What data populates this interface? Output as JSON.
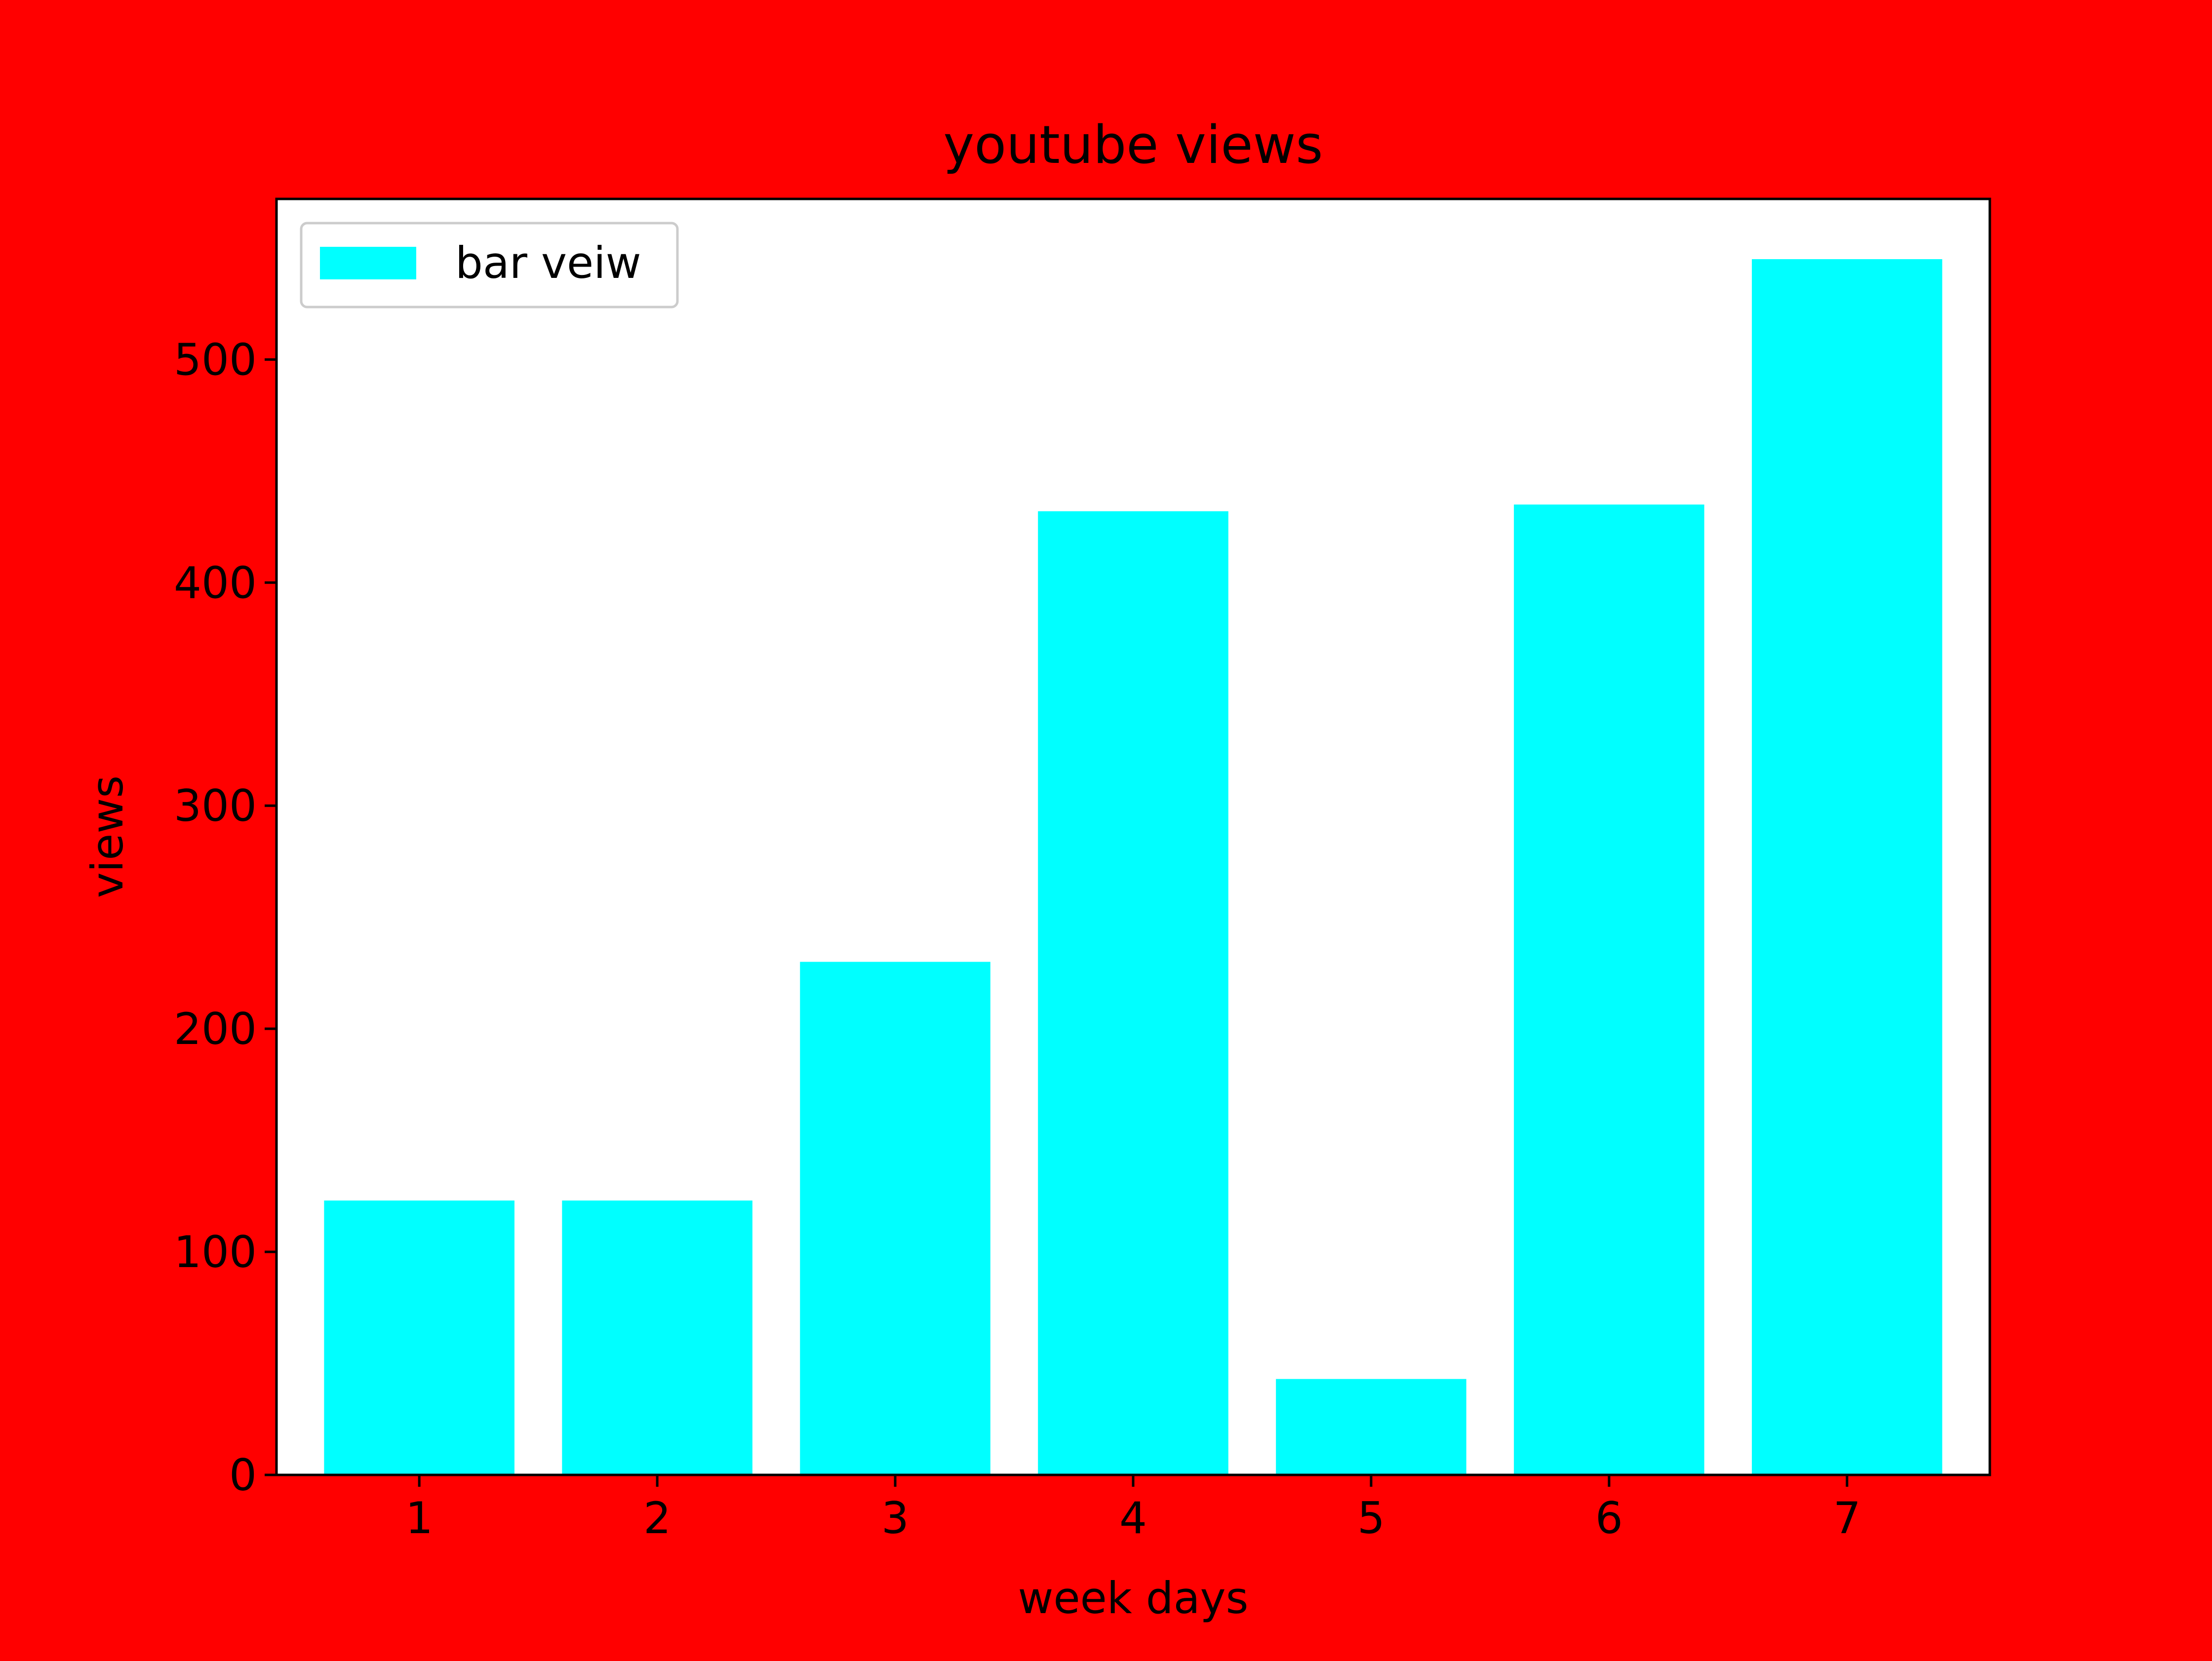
{
  "colors": {
    "figure_background": "#ff0000",
    "plot_background": "#ffffff",
    "bar": "#00ffff",
    "axis": "#000000",
    "legend_border": "#cccccc"
  },
  "chart_data": {
    "type": "bar",
    "title": "youtube views",
    "xlabel": "week days",
    "ylabel": "views",
    "categories": [
      "1",
      "2",
      "3",
      "4",
      "5",
      "6",
      "7"
    ],
    "x": [
      1,
      2,
      3,
      4,
      5,
      6,
      7
    ],
    "series": [
      {
        "name": "bar veiw",
        "values": [
          123,
          123,
          230,
          432,
          43,
          435,
          545
        ],
        "color": "#00ffff"
      }
    ],
    "xlim": [
      0.4,
      7.6
    ],
    "ylim": [
      0,
      572
    ],
    "yticks": [
      0,
      100,
      200,
      300,
      400,
      500
    ],
    "bar_width": 0.8,
    "grid": false,
    "legend": {
      "placement": "top-left",
      "entries": [
        "bar veiw"
      ]
    }
  }
}
